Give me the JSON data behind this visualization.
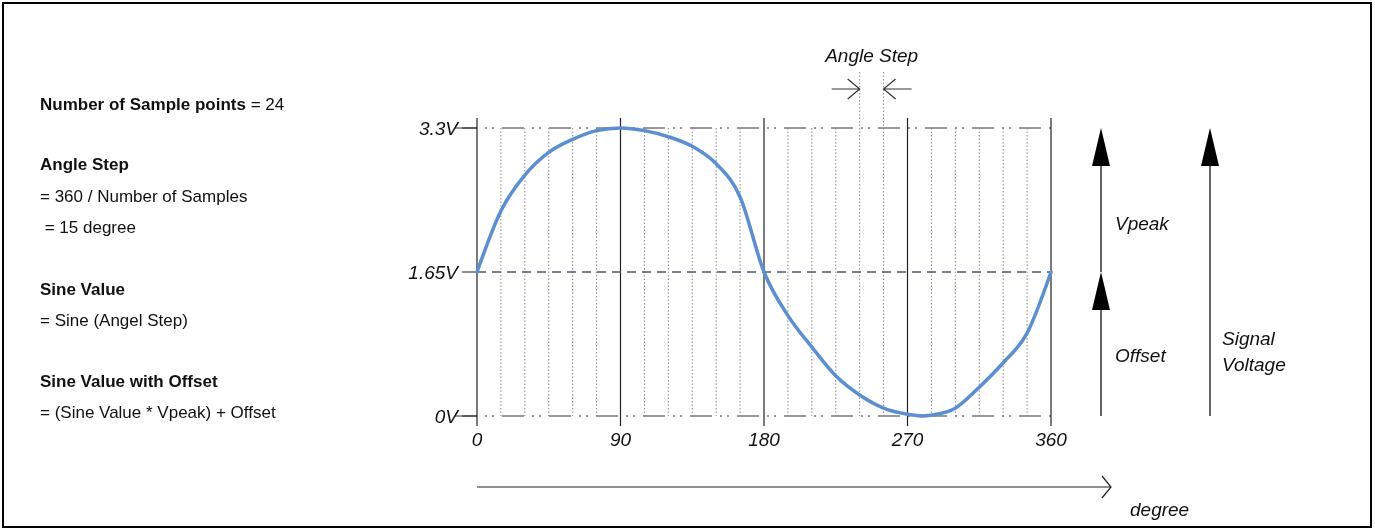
{
  "chart_data": {
    "type": "line",
    "xlabel": "degree",
    "series": [
      {
        "color": "#5b8fd0",
        "x": [
          0,
          15,
          30,
          45,
          60,
          75,
          90,
          105,
          120,
          135,
          150,
          165,
          180,
          195,
          210,
          225,
          240,
          255,
          270,
          280,
          285,
          300,
          315,
          330,
          345,
          360
        ],
        "values": [
          1.65,
          2.35,
          2.76,
          3.02,
          3.17,
          3.27,
          3.3,
          3.27,
          3.2,
          3.09,
          2.89,
          2.51,
          1.65,
          1.15,
          0.79,
          0.46,
          0.24,
          0.09,
          0.02,
          0,
          0.01,
          0.09,
          0.33,
          0.61,
          0.95,
          1.65
        ]
      }
    ],
    "xlim": [
      0,
      360
    ],
    "xticks": [
      0,
      {
        "value": 15,
        "label": null
      },
      {
        "value": 30,
        "label": null
      },
      {
        "value": 45,
        "label": null
      },
      {
        "value": 60,
        "label": null
      },
      {
        "value": 75,
        "label": null
      },
      90,
      {
        "value": 105,
        "label": null
      },
      {
        "value": 120,
        "label": null
      },
      {
        "value": 135,
        "label": null
      },
      {
        "value": 150,
        "label": null
      },
      {
        "value": 165,
        "label": null
      },
      180,
      {
        "value": 195,
        "label": null
      },
      {
        "value": 210,
        "label": null
      },
      {
        "value": 225,
        "label": null
      },
      {
        "value": 240,
        "label": null
      },
      {
        "value": 255,
        "label": null
      },
      270,
      {
        "value": 285,
        "label": null
      },
      {
        "value": 300,
        "label": null
      },
      {
        "value": 315,
        "label": null
      },
      {
        "value": 330,
        "label": null
      },
      {
        "value": 345,
        "label": null
      },
      360
    ],
    "ylim": [
      0,
      3.3
    ],
    "yticks": [
      {
        "value": 0,
        "label": "0V"
      },
      {
        "value": 1.65,
        "label": "1.65V"
      },
      {
        "value": 3.3,
        "label": "3.3V"
      }
    ],
    "grid": true,
    "marker": "none",
    "ref_lines": [
      {
        "axis": "y",
        "value": 1.65,
        "line_style": "dashed",
        "color": "#4a5a70"
      }
    ],
    "annotations": [
      "Number of Sample points",
      "= 24",
      "Angle Step",
      "= 360 / Number of Samples",
      " = 15 degree",
      "Sine Value",
      "= Sine (Angel Step)",
      "Sine Value with Offset",
      "= (Sine Value * Vpeak) + Offset",
      "Angle Step",
      "Vpeak",
      "Offset",
      "Signal Voltage"
    ]
  }
}
